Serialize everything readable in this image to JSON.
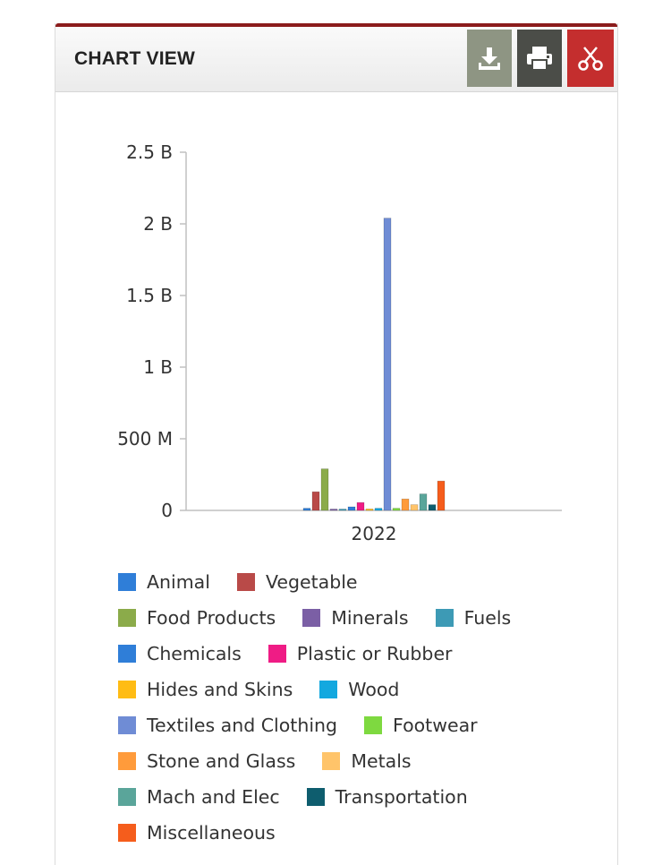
{
  "header": {
    "title": "CHART VIEW"
  },
  "toolbar": {
    "download_icon": "download-icon",
    "print_icon": "printer-icon",
    "close_icon": "scissors-icon",
    "colors": {
      "download": "#8e9583",
      "print": "#4b4d48",
      "close": "#c42e2e"
    }
  },
  "chart_data": {
    "type": "bar",
    "title": "",
    "xlabel": "",
    "ylabel": "",
    "categories": [
      "2022"
    ],
    "ylim": [
      0,
      2500000000
    ],
    "y_ticks": [
      {
        "value": 0,
        "label": "0"
      },
      {
        "value": 500000000,
        "label": "500 M"
      },
      {
        "value": 1000000000,
        "label": "1 B"
      },
      {
        "value": 1500000000,
        "label": "1.5 B"
      },
      {
        "value": 2000000000,
        "label": "2 B"
      },
      {
        "value": 2500000000,
        "label": "2.5 B"
      }
    ],
    "grid": false,
    "legend_position": "bottom",
    "series": [
      {
        "name": "Animal",
        "color": "#2f7ed8",
        "values": [
          15000000
        ]
      },
      {
        "name": "Vegetable",
        "color": "#b94a48",
        "values": [
          130000000
        ]
      },
      {
        "name": "Food Products",
        "color": "#8bab4a",
        "values": [
          290000000
        ]
      },
      {
        "name": "Minerals",
        "color": "#7b5fa5",
        "values": [
          3000000
        ]
      },
      {
        "name": "Fuels",
        "color": "#3d9ab5",
        "values": [
          2000000
        ]
      },
      {
        "name": "Chemicals",
        "color": "#2f7ed8",
        "values": [
          25000000
        ]
      },
      {
        "name": "Plastic or Rubber",
        "color": "#ef1c85",
        "values": [
          55000000
        ]
      },
      {
        "name": "Hides and Skins",
        "color": "#ffbc14",
        "values": [
          10000000
        ]
      },
      {
        "name": "Wood",
        "color": "#13a8df",
        "values": [
          15000000
        ]
      },
      {
        "name": "Textiles and Clothing",
        "color": "#6f8cd5",
        "values": [
          2040000000
        ]
      },
      {
        "name": "Footwear",
        "color": "#7ed940",
        "values": [
          15000000
        ]
      },
      {
        "name": "Stone and Glass",
        "color": "#ff9b3b",
        "values": [
          80000000
        ]
      },
      {
        "name": "Metals",
        "color": "#ffc46a",
        "values": [
          40000000
        ]
      },
      {
        "name": "Mach and Elec",
        "color": "#5aa59a",
        "values": [
          115000000
        ]
      },
      {
        "name": "Transportation",
        "color": "#0e5d6e",
        "values": [
          40000000
        ]
      },
      {
        "name": "Miscellaneous",
        "color": "#f55d1c",
        "values": [
          205000000
        ]
      }
    ]
  }
}
